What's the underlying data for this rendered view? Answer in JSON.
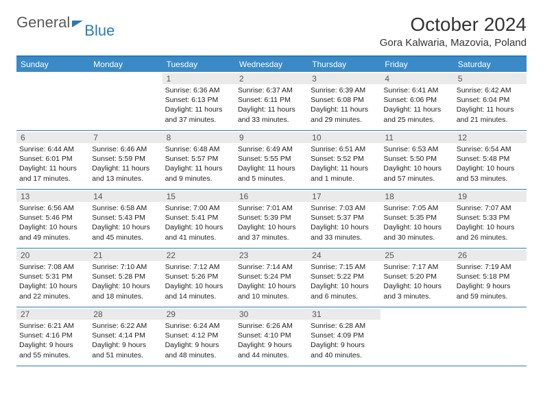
{
  "logo": {
    "text1": "General",
    "text2": "Blue"
  },
  "title": "October 2024",
  "location": "Gora Kalwaria, Mazovia, Poland",
  "colors": {
    "header_bg": "#3a8ac8",
    "border": "#2a7ab8",
    "daynum_bg": "#eaeaea",
    "text": "#222222"
  },
  "weekdays": [
    "Sunday",
    "Monday",
    "Tuesday",
    "Wednesday",
    "Thursday",
    "Friday",
    "Saturday"
  ],
  "weeks": [
    [
      {
        "n": "",
        "sr": "",
        "ss": "",
        "dl": ""
      },
      {
        "n": "",
        "sr": "",
        "ss": "",
        "dl": ""
      },
      {
        "n": "1",
        "sr": "Sunrise: 6:36 AM",
        "ss": "Sunset: 6:13 PM",
        "dl": "Daylight: 11 hours and 37 minutes."
      },
      {
        "n": "2",
        "sr": "Sunrise: 6:37 AM",
        "ss": "Sunset: 6:11 PM",
        "dl": "Daylight: 11 hours and 33 minutes."
      },
      {
        "n": "3",
        "sr": "Sunrise: 6:39 AM",
        "ss": "Sunset: 6:08 PM",
        "dl": "Daylight: 11 hours and 29 minutes."
      },
      {
        "n": "4",
        "sr": "Sunrise: 6:41 AM",
        "ss": "Sunset: 6:06 PM",
        "dl": "Daylight: 11 hours and 25 minutes."
      },
      {
        "n": "5",
        "sr": "Sunrise: 6:42 AM",
        "ss": "Sunset: 6:04 PM",
        "dl": "Daylight: 11 hours and 21 minutes."
      }
    ],
    [
      {
        "n": "6",
        "sr": "Sunrise: 6:44 AM",
        "ss": "Sunset: 6:01 PM",
        "dl": "Daylight: 11 hours and 17 minutes."
      },
      {
        "n": "7",
        "sr": "Sunrise: 6:46 AM",
        "ss": "Sunset: 5:59 PM",
        "dl": "Daylight: 11 hours and 13 minutes."
      },
      {
        "n": "8",
        "sr": "Sunrise: 6:48 AM",
        "ss": "Sunset: 5:57 PM",
        "dl": "Daylight: 11 hours and 9 minutes."
      },
      {
        "n": "9",
        "sr": "Sunrise: 6:49 AM",
        "ss": "Sunset: 5:55 PM",
        "dl": "Daylight: 11 hours and 5 minutes."
      },
      {
        "n": "10",
        "sr": "Sunrise: 6:51 AM",
        "ss": "Sunset: 5:52 PM",
        "dl": "Daylight: 11 hours and 1 minute."
      },
      {
        "n": "11",
        "sr": "Sunrise: 6:53 AM",
        "ss": "Sunset: 5:50 PM",
        "dl": "Daylight: 10 hours and 57 minutes."
      },
      {
        "n": "12",
        "sr": "Sunrise: 6:54 AM",
        "ss": "Sunset: 5:48 PM",
        "dl": "Daylight: 10 hours and 53 minutes."
      }
    ],
    [
      {
        "n": "13",
        "sr": "Sunrise: 6:56 AM",
        "ss": "Sunset: 5:46 PM",
        "dl": "Daylight: 10 hours and 49 minutes."
      },
      {
        "n": "14",
        "sr": "Sunrise: 6:58 AM",
        "ss": "Sunset: 5:43 PM",
        "dl": "Daylight: 10 hours and 45 minutes."
      },
      {
        "n": "15",
        "sr": "Sunrise: 7:00 AM",
        "ss": "Sunset: 5:41 PM",
        "dl": "Daylight: 10 hours and 41 minutes."
      },
      {
        "n": "16",
        "sr": "Sunrise: 7:01 AM",
        "ss": "Sunset: 5:39 PM",
        "dl": "Daylight: 10 hours and 37 minutes."
      },
      {
        "n": "17",
        "sr": "Sunrise: 7:03 AM",
        "ss": "Sunset: 5:37 PM",
        "dl": "Daylight: 10 hours and 33 minutes."
      },
      {
        "n": "18",
        "sr": "Sunrise: 7:05 AM",
        "ss": "Sunset: 5:35 PM",
        "dl": "Daylight: 10 hours and 30 minutes."
      },
      {
        "n": "19",
        "sr": "Sunrise: 7:07 AM",
        "ss": "Sunset: 5:33 PM",
        "dl": "Daylight: 10 hours and 26 minutes."
      }
    ],
    [
      {
        "n": "20",
        "sr": "Sunrise: 7:08 AM",
        "ss": "Sunset: 5:31 PM",
        "dl": "Daylight: 10 hours and 22 minutes."
      },
      {
        "n": "21",
        "sr": "Sunrise: 7:10 AM",
        "ss": "Sunset: 5:28 PM",
        "dl": "Daylight: 10 hours and 18 minutes."
      },
      {
        "n": "22",
        "sr": "Sunrise: 7:12 AM",
        "ss": "Sunset: 5:26 PM",
        "dl": "Daylight: 10 hours and 14 minutes."
      },
      {
        "n": "23",
        "sr": "Sunrise: 7:14 AM",
        "ss": "Sunset: 5:24 PM",
        "dl": "Daylight: 10 hours and 10 minutes."
      },
      {
        "n": "24",
        "sr": "Sunrise: 7:15 AM",
        "ss": "Sunset: 5:22 PM",
        "dl": "Daylight: 10 hours and 6 minutes."
      },
      {
        "n": "25",
        "sr": "Sunrise: 7:17 AM",
        "ss": "Sunset: 5:20 PM",
        "dl": "Daylight: 10 hours and 3 minutes."
      },
      {
        "n": "26",
        "sr": "Sunrise: 7:19 AM",
        "ss": "Sunset: 5:18 PM",
        "dl": "Daylight: 9 hours and 59 minutes."
      }
    ],
    [
      {
        "n": "27",
        "sr": "Sunrise: 6:21 AM",
        "ss": "Sunset: 4:16 PM",
        "dl": "Daylight: 9 hours and 55 minutes."
      },
      {
        "n": "28",
        "sr": "Sunrise: 6:22 AM",
        "ss": "Sunset: 4:14 PM",
        "dl": "Daylight: 9 hours and 51 minutes."
      },
      {
        "n": "29",
        "sr": "Sunrise: 6:24 AM",
        "ss": "Sunset: 4:12 PM",
        "dl": "Daylight: 9 hours and 48 minutes."
      },
      {
        "n": "30",
        "sr": "Sunrise: 6:26 AM",
        "ss": "Sunset: 4:10 PM",
        "dl": "Daylight: 9 hours and 44 minutes."
      },
      {
        "n": "31",
        "sr": "Sunrise: 6:28 AM",
        "ss": "Sunset: 4:09 PM",
        "dl": "Daylight: 9 hours and 40 minutes."
      },
      {
        "n": "",
        "sr": "",
        "ss": "",
        "dl": ""
      },
      {
        "n": "",
        "sr": "",
        "ss": "",
        "dl": ""
      }
    ]
  ]
}
